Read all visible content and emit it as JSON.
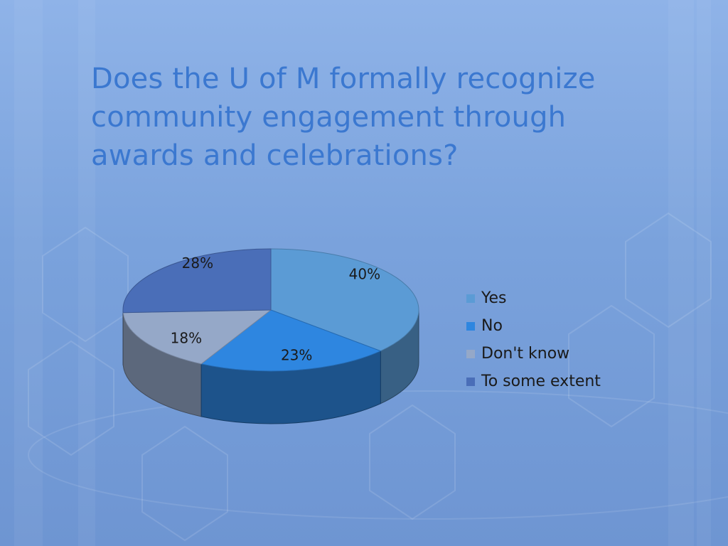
{
  "slide": {
    "title": "Does the U of M formally recognize community engagement through awards and celebrations?"
  },
  "colors": {
    "background_top": "#8fb3e8",
    "background_bottom": "#6e95d2",
    "title": "#3b78d0"
  },
  "chart_data": {
    "type": "pie",
    "style": "3d",
    "title": "",
    "legend_position": "right",
    "slices": [
      {
        "label": "Yes",
        "value": 40,
        "data_label": "40%",
        "color": "#5b9bd5"
      },
      {
        "label": "No",
        "value": 23,
        "data_label": "23%",
        "color": "#2e86e0"
      },
      {
        "label": "Don't know",
        "value": 18,
        "data_label": "18%",
        "color": "#95a8c8"
      },
      {
        "label": "To some extent",
        "value": 28,
        "data_label": "28%",
        "color": "#4a6eb8"
      }
    ]
  }
}
